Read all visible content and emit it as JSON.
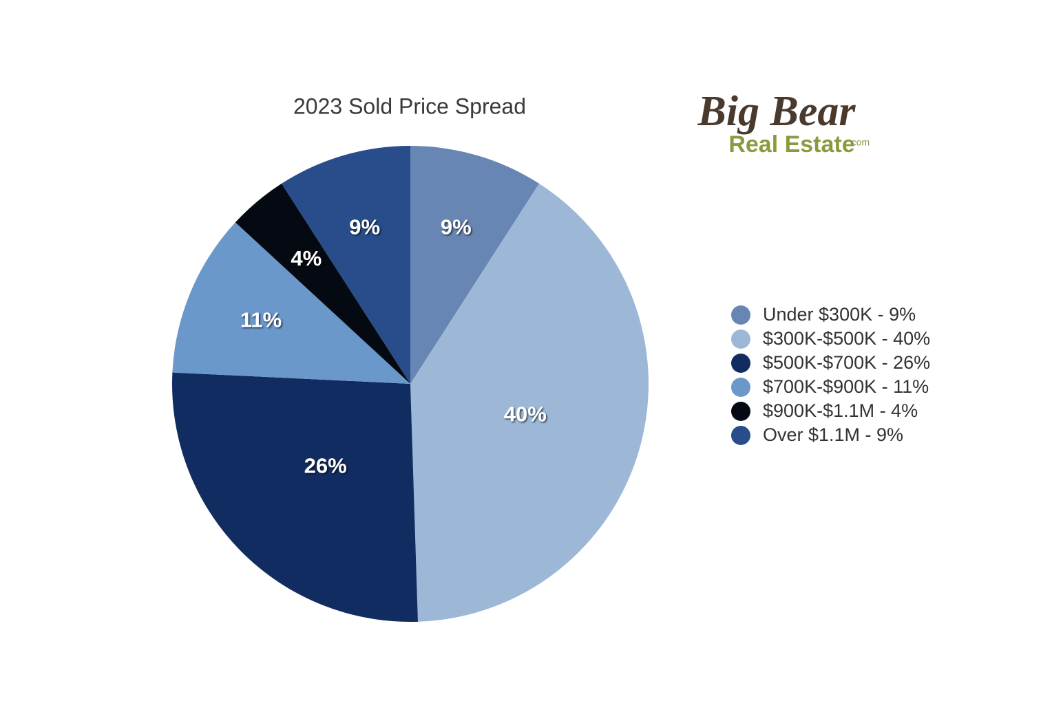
{
  "chart_data": {
    "type": "pie",
    "title": "2023 Sold Price Spread",
    "categories": [
      "Under $300K - 9%",
      "$300K-$500K - 40%",
      "$500K-$700K - 26%",
      "$700K-$900K - 11%",
      "$900K-$1.1M - 4%",
      "Over $1.1M - 9%"
    ],
    "values": [
      9,
      40,
      26,
      11,
      4,
      9
    ],
    "value_labels": [
      "9%",
      "40%",
      "26%",
      "11%",
      "4%",
      "9%"
    ],
    "colors": [
      "#6886b4",
      "#9db8d7",
      "#112c60",
      "#6a98cb",
      "#050a12",
      "#284d8a"
    ],
    "legend": "right"
  },
  "logo": {
    "name": "Big Bear",
    "subtitle": "Real Estate",
    "suffix": ".com"
  }
}
